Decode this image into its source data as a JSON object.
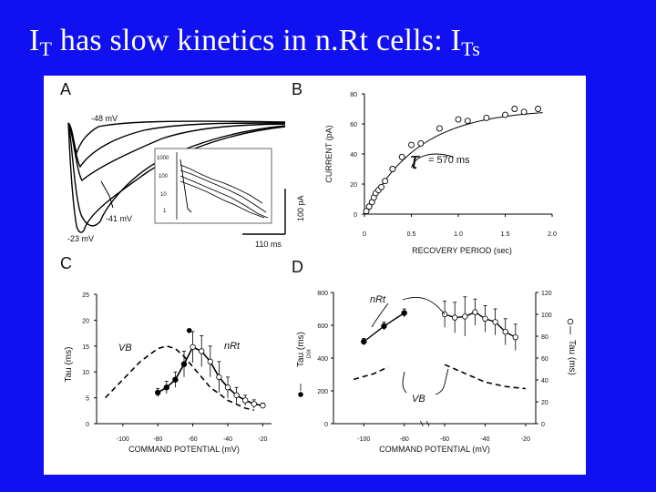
{
  "slide": {
    "title_main": "I",
    "title_sub1": "T",
    "title_mid": " has slow kinetics in n.Rt cells: I",
    "title_sub2": "Ts"
  },
  "panels": {
    "A": {
      "label": "A",
      "trace_labels": [
        "-48 mV",
        "-41 mV",
        "-23 mV"
      ],
      "scale_current": "100 pA",
      "scale_time": "110 ms",
      "inset_ticks": [
        "1000",
        "100",
        "10",
        "1"
      ]
    },
    "B": {
      "label": "B",
      "tau_symbol": "τ",
      "tau_text": "= 570 ms"
    },
    "C": {
      "label": "C",
      "series_labels": [
        "VB",
        "nRt"
      ]
    },
    "D": {
      "label": "D",
      "series_labels": [
        "nRt",
        "VB"
      ],
      "right_axis_label": "Tau (ms)",
      "left_axis_label_main": "Tau (ms)",
      "left_axis_label_sub": "DIX"
    }
  },
  "chart_data": [
    {
      "panel": "B",
      "type": "scatter",
      "xlabel": "RECOVERY PERIOD (sec)",
      "ylabel": "CURRENT (pA)",
      "xlim": [
        0,
        2.0
      ],
      "ylim": [
        0,
        80
      ],
      "xticks": [
        "0",
        "0.5",
        "1.0",
        "1.5",
        "2.0"
      ],
      "yticks": [
        "0",
        "20",
        "40",
        "60",
        "80"
      ],
      "x": [
        0.02,
        0.05,
        0.08,
        0.1,
        0.12,
        0.15,
        0.18,
        0.22,
        0.3,
        0.4,
        0.5,
        0.6,
        0.8,
        1.0,
        1.1,
        1.3,
        1.5,
        1.6,
        1.7,
        1.85
      ],
      "y": [
        2,
        5,
        8,
        11,
        14,
        16,
        18,
        22,
        30,
        38,
        46,
        47,
        57,
        63,
        62,
        64,
        66,
        70,
        68,
        70
      ],
      "fit_tau_ms": 570,
      "fit_amplitude": 70
    },
    {
      "panel": "C",
      "type": "line",
      "xlabel": "COMMAND POTENTIAL (mV)",
      "ylabel": "Tau (ms)",
      "xlim": [
        -115,
        -15
      ],
      "ylim": [
        0,
        25
      ],
      "xticks": [
        "-100",
        "-80",
        "-60",
        "-40",
        "-20"
      ],
      "yticks": [
        "0",
        "5",
        "10",
        "15",
        "20",
        "25"
      ],
      "series": [
        {
          "name": "nRt",
          "x": [
            -80,
            -75,
            -70,
            -65,
            -60,
            -55,
            -50,
            -45,
            -40,
            -35,
            -30,
            -25,
            -20
          ],
          "y": [
            6,
            7,
            8.5,
            11.5,
            14.8,
            14,
            12,
            9,
            7,
            5.5,
            4.5,
            3.8,
            3.5
          ],
          "err": [
            0.8,
            1.2,
            1.5,
            2.5,
            3,
            3,
            3,
            3,
            2,
            1.5,
            1,
            0.8,
            0.5
          ]
        },
        {
          "name": "VB",
          "x": [
            -110,
            -100,
            -90,
            -80,
            -75,
            -70,
            -65,
            -60,
            -55,
            -50,
            -45,
            -40,
            -30,
            -25
          ],
          "y": [
            5,
            8.5,
            12,
            14.5,
            15,
            14.5,
            13,
            11,
            9,
            7,
            5.8,
            4.5,
            3,
            2.6
          ]
        }
      ],
      "outlier": {
        "x": -62,
        "y": 18
      }
    },
    {
      "panel": "D",
      "type": "line",
      "xlabel": "COMMAND POTENTIAL (mV)",
      "ylim_left": [
        0,
        800
      ],
      "yticks_left": [
        "0",
        "200",
        "400",
        "600",
        "800"
      ],
      "ylim_right": [
        0,
        120
      ],
      "yticks_right": [
        "0",
        "20",
        "40",
        "60",
        "80",
        "100",
        "120"
      ],
      "xticks": [
        "-100",
        "-80",
        "-60",
        "-40",
        "-20"
      ],
      "series": [
        {
          "name": "nRt",
          "axis": "left",
          "x": [
            -100,
            -90,
            -80
          ],
          "y": [
            500,
            595,
            675
          ],
          "err": [
            20,
            25,
            25
          ]
        },
        {
          "name": "nRt",
          "axis": "right",
          "x": [
            -60,
            -55,
            -50,
            -45,
            -40,
            -35,
            -30,
            -25
          ],
          "y": [
            100,
            97,
            98,
            102,
            96,
            93,
            84,
            79
          ],
          "err": [
            12,
            14,
            18,
            12,
            12,
            12,
            12,
            12
          ]
        },
        {
          "name": "VB",
          "axis": "left",
          "x": [
            -105,
            -95,
            -88
          ],
          "y": [
            270,
            305,
            345
          ]
        },
        {
          "name": "VB",
          "axis": "right",
          "x": [
            -60,
            -55,
            -50,
            -45,
            -40,
            -35,
            -30,
            -25,
            -20
          ],
          "y": [
            54,
            50,
            46,
            42,
            38,
            36,
            34,
            33,
            32
          ]
        }
      ]
    }
  ]
}
